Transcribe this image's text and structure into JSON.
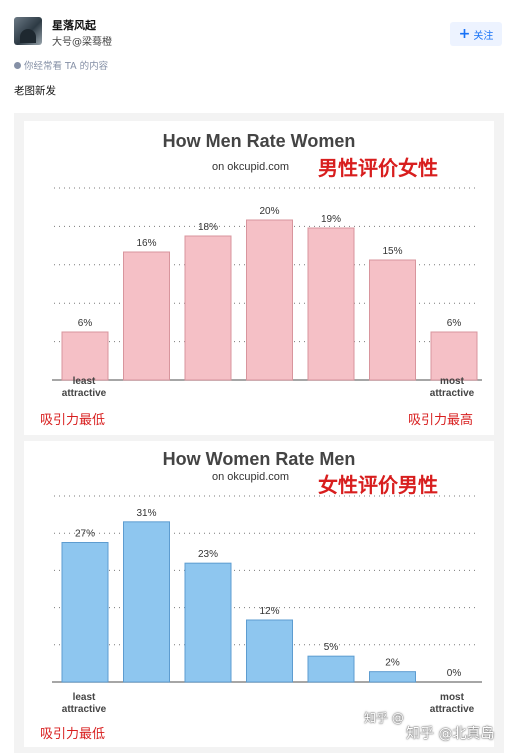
{
  "post": {
    "author_name": "星落风起",
    "author_sub": "大号@梁蓦橙",
    "follow_label": "关注",
    "hint_text": "你经常看 TA 的内容",
    "body_text": "老图新发"
  },
  "chart_data": [
    {
      "type": "bar",
      "title": "How Men Rate Women",
      "subtitle": "on okcupid.com",
      "caption_zh": "男性评价女性",
      "categories": [
        "",
        "",
        "",
        "",
        "",
        "",
        ""
      ],
      "values": [
        6,
        16,
        18,
        20,
        19,
        15,
        6
      ],
      "data_labels": [
        "6%",
        "16%",
        "18%",
        "20%",
        "19%",
        "15%",
        "6%"
      ],
      "ylim": [
        0,
        24
      ],
      "grid": true,
      "color": "#f5c0c6",
      "stroke": "#d8959d",
      "left_end_label": [
        "least",
        "attractive"
      ],
      "right_end_label": [
        "most",
        "attractive"
      ],
      "left_end_zh": "吸引力最低",
      "right_end_zh": "吸引力最高"
    },
    {
      "type": "bar",
      "title": "How Women Rate Men",
      "subtitle": "on okcupid.com",
      "caption_zh": "女性评价男性",
      "categories": [
        "",
        "",
        "",
        "",
        "",
        "",
        ""
      ],
      "values": [
        27,
        31,
        23,
        12,
        5,
        2,
        0
      ],
      "data_labels": [
        "27%",
        "31%",
        "23%",
        "12%",
        "5%",
        "2%",
        "0%"
      ],
      "ylim": [
        0,
        36
      ],
      "grid": true,
      "color": "#8ec6ef",
      "stroke": "#5d9cd0",
      "left_end_label": [
        "least",
        "attractive"
      ],
      "right_end_label": [
        "most",
        "attractive"
      ],
      "left_end_zh": "吸引力最低",
      "right_end_zh": ""
    }
  ],
  "watermark": {
    "site": "知乎 @",
    "handle": "知乎 @北真岛"
  }
}
